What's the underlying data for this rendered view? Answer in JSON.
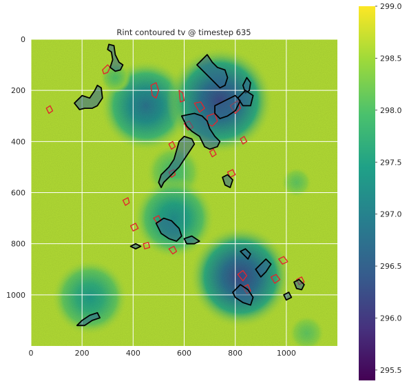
{
  "chart_data": {
    "type": "heatmap",
    "title": "Rint contoured tv @ timestep 635",
    "xlabel": "",
    "ylabel": "",
    "xlim": [
      0,
      1200
    ],
    "ylim": [
      1200,
      0
    ],
    "x_ticks": [
      0,
      200,
      400,
      600,
      800,
      1000
    ],
    "y_ticks": [
      0,
      200,
      400,
      600,
      800,
      1000
    ],
    "grid": true,
    "colormap": "viridis",
    "colorbar": {
      "min": 295.4,
      "max": 299.0,
      "ticks": [
        "295.5",
        "296.0",
        "296.5",
        "297.0",
        "297.5",
        "298.0",
        "298.5",
        "299.0"
      ]
    },
    "background_value": 298.6,
    "cold_pools": [
      {
        "cx": 450,
        "cy": 260,
        "r": 180,
        "min": 296.8
      },
      {
        "cx": 740,
        "cy": 240,
        "r": 210,
        "min": 296.2
      },
      {
        "cx": 560,
        "cy": 520,
        "r": 110,
        "min": 297.9
      },
      {
        "cx": 560,
        "cy": 700,
        "r": 160,
        "min": 297.2
      },
      {
        "cx": 820,
        "cy": 930,
        "r": 200,
        "min": 296.2
      },
      {
        "cx": 230,
        "cy": 1010,
        "r": 150,
        "min": 297.4
      },
      {
        "cx": 1040,
        "cy": 560,
        "r": 60,
        "min": 298.1
      },
      {
        "cx": 330,
        "cy": 150,
        "r": 60,
        "min": 298.0
      },
      {
        "cx": 1080,
        "cy": 1150,
        "r": 70,
        "min": 298.1
      }
    ],
    "contours_black": [
      [
        [
          310,
          110
        ],
        [
          320,
          80
        ],
        [
          315,
          50
        ],
        [
          300,
          40
        ],
        [
          305,
          20
        ],
        [
          325,
          25
        ],
        [
          330,
          60
        ],
        [
          345,
          90
        ],
        [
          360,
          100
        ],
        [
          350,
          120
        ],
        [
          330,
          125
        ]
      ],
      [
        [
          170,
          250
        ],
        [
          200,
          220
        ],
        [
          230,
          230
        ],
        [
          250,
          200
        ],
        [
          260,
          180
        ],
        [
          275,
          190
        ],
        [
          280,
          230
        ],
        [
          260,
          260
        ],
        [
          240,
          270
        ],
        [
          210,
          270
        ],
        [
          190,
          275
        ]
      ],
      [
        [
          590,
          300
        ],
        [
          610,
          340
        ],
        [
          630,
          360
        ],
        [
          660,
          380
        ],
        [
          680,
          420
        ],
        [
          700,
          430
        ],
        [
          730,
          420
        ],
        [
          740,
          400
        ],
        [
          720,
          380
        ],
        [
          700,
          350
        ],
        [
          690,
          320
        ],
        [
          670,
          300
        ],
        [
          640,
          290
        ]
      ],
      [
        [
          580,
          400
        ],
        [
          600,
          380
        ],
        [
          630,
          390
        ],
        [
          640,
          410
        ],
        [
          620,
          440
        ],
        [
          600,
          470
        ],
        [
          580,
          500
        ],
        [
          560,
          520
        ],
        [
          540,
          540
        ],
        [
          520,
          560
        ],
        [
          510,
          580
        ],
        [
          500,
          560
        ],
        [
          510,
          530
        ],
        [
          540,
          500
        ],
        [
          560,
          470
        ]
      ],
      [
        [
          650,
          100
        ],
        [
          670,
          80
        ],
        [
          690,
          60
        ],
        [
          710,
          90
        ],
        [
          730,
          110
        ],
        [
          760,
          120
        ],
        [
          770,
          150
        ],
        [
          760,
          180
        ],
        [
          740,
          190
        ],
        [
          720,
          170
        ],
        [
          700,
          150
        ],
        [
          680,
          130
        ]
      ],
      [
        [
          720,
          260
        ],
        [
          760,
          240
        ],
        [
          800,
          220
        ],
        [
          820,
          240
        ],
        [
          800,
          280
        ],
        [
          770,
          300
        ],
        [
          740,
          310
        ],
        [
          720,
          290
        ]
      ],
      [
        [
          830,
          180
        ],
        [
          845,
          150
        ],
        [
          860,
          170
        ],
        [
          855,
          200
        ],
        [
          840,
          210
        ]
      ],
      [
        [
          750,
          540
        ],
        [
          770,
          530
        ],
        [
          790,
          550
        ],
        [
          780,
          580
        ],
        [
          760,
          570
        ]
      ],
      [
        [
          490,
          720
        ],
        [
          520,
          700
        ],
        [
          550,
          710
        ],
        [
          580,
          740
        ],
        [
          590,
          770
        ],
        [
          570,
          790
        ],
        [
          540,
          780
        ],
        [
          510,
          760
        ]
      ],
      [
        [
          600,
          780
        ],
        [
          630,
          770
        ],
        [
          660,
          790
        ],
        [
          640,
          800
        ],
        [
          610,
          800
        ]
      ],
      [
        [
          390,
          810
        ],
        [
          410,
          800
        ],
        [
          430,
          810
        ],
        [
          410,
          820
        ]
      ],
      [
        [
          820,
          830
        ],
        [
          840,
          820
        ],
        [
          860,
          840
        ],
        [
          850,
          860
        ]
      ],
      [
        [
          880,
          900
        ],
        [
          900,
          880
        ],
        [
          920,
          860
        ],
        [
          940,
          880
        ],
        [
          920,
          910
        ],
        [
          900,
          930
        ]
      ],
      [
        [
          790,
          990
        ],
        [
          820,
          960
        ],
        [
          850,
          980
        ],
        [
          870,
          1010
        ],
        [
          860,
          1040
        ],
        [
          830,
          1030
        ],
        [
          800,
          1010
        ]
      ],
      [
        [
          1030,
          950
        ],
        [
          1050,
          940
        ],
        [
          1070,
          960
        ],
        [
          1060,
          980
        ],
        [
          1040,
          975
        ]
      ],
      [
        [
          990,
          1000
        ],
        [
          1010,
          990
        ],
        [
          1020,
          1010
        ],
        [
          1000,
          1020
        ]
      ],
      [
        [
          180,
          1120
        ],
        [
          200,
          1100
        ],
        [
          230,
          1080
        ],
        [
          260,
          1070
        ],
        [
          270,
          1090
        ],
        [
          240,
          1100
        ],
        [
          210,
          1120
        ]
      ],
      [
        [
          810,
          230
        ],
        [
          840,
          200
        ],
        [
          870,
          220
        ],
        [
          860,
          260
        ],
        [
          830,
          260
        ]
      ]
    ],
    "contours_red": [
      [
        [
          280,
          120
        ],
        [
          300,
          100
        ],
        [
          310,
          110
        ],
        [
          300,
          130
        ],
        [
          285,
          135
        ]
      ],
      [
        [
          60,
          270
        ],
        [
          75,
          260
        ],
        [
          85,
          280
        ],
        [
          70,
          290
        ]
      ],
      [
        [
          470,
          180
        ],
        [
          490,
          170
        ],
        [
          500,
          200
        ],
        [
          490,
          230
        ],
        [
          475,
          220
        ]
      ],
      [
        [
          580,
          200
        ],
        [
          595,
          210
        ],
        [
          600,
          240
        ],
        [
          585,
          245
        ]
      ],
      [
        [
          640,
          250
        ],
        [
          665,
          245
        ],
        [
          680,
          270
        ],
        [
          660,
          285
        ]
      ],
      [
        [
          690,
          300
        ],
        [
          720,
          290
        ],
        [
          730,
          320
        ],
        [
          710,
          340
        ],
        [
          690,
          330
        ]
      ],
      [
        [
          780,
          260
        ],
        [
          810,
          240
        ],
        [
          820,
          270
        ],
        [
          800,
          290
        ]
      ],
      [
        [
          820,
          390
        ],
        [
          835,
          380
        ],
        [
          845,
          400
        ],
        [
          830,
          410
        ]
      ],
      [
        [
          700,
          440
        ],
        [
          715,
          430
        ],
        [
          725,
          450
        ],
        [
          710,
          460
        ]
      ],
      [
        [
          540,
          410
        ],
        [
          555,
          400
        ],
        [
          565,
          420
        ],
        [
          550,
          430
        ]
      ],
      [
        [
          540,
          520
        ],
        [
          560,
          510
        ],
        [
          565,
          530
        ],
        [
          550,
          540
        ]
      ],
      [
        [
          770,
          520
        ],
        [
          790,
          510
        ],
        [
          800,
          530
        ],
        [
          780,
          540
        ]
      ],
      [
        [
          360,
          630
        ],
        [
          380,
          620
        ],
        [
          385,
          640
        ],
        [
          370,
          650
        ]
      ],
      [
        [
          390,
          730
        ],
        [
          410,
          720
        ],
        [
          420,
          740
        ],
        [
          400,
          750
        ]
      ],
      [
        [
          480,
          700
        ],
        [
          500,
          690
        ],
        [
          510,
          710
        ],
        [
          495,
          720
        ]
      ],
      [
        [
          540,
          820
        ],
        [
          560,
          810
        ],
        [
          570,
          830
        ],
        [
          555,
          840
        ]
      ],
      [
        [
          440,
          800
        ],
        [
          460,
          795
        ],
        [
          465,
          815
        ],
        [
          445,
          820
        ]
      ],
      [
        [
          810,
          920
        ],
        [
          830,
          905
        ],
        [
          845,
          925
        ],
        [
          830,
          945
        ]
      ],
      [
        [
          830,
          970
        ],
        [
          850,
          960
        ],
        [
          860,
          985
        ],
        [
          845,
          995
        ]
      ],
      [
        [
          940,
          930
        ],
        [
          960,
          920
        ],
        [
          975,
          940
        ],
        [
          955,
          955
        ]
      ],
      [
        [
          970,
          860
        ],
        [
          990,
          850
        ],
        [
          1005,
          870
        ],
        [
          985,
          880
        ]
      ],
      [
        [
          1040,
          940
        ],
        [
          1060,
          930
        ],
        [
          1070,
          950
        ],
        [
          1050,
          960
        ]
      ],
      [
        [
          600,
          330
        ],
        [
          620,
          320
        ],
        [
          635,
          345
        ],
        [
          615,
          355
        ]
      ]
    ]
  }
}
